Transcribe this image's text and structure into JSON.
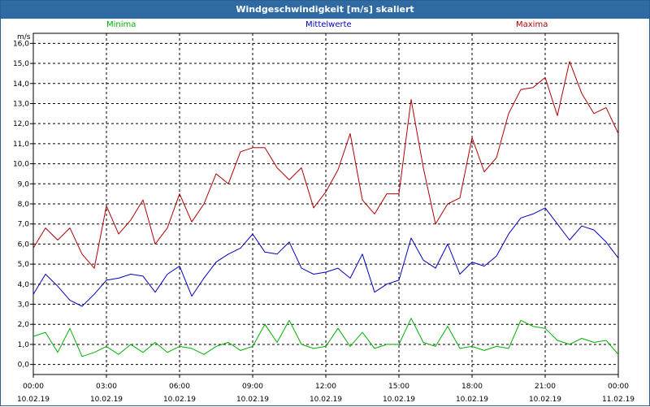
{
  "window": {
    "title": "Windgeschwindigkeit [m/s] skaliert"
  },
  "chart_data": {
    "type": "line",
    "title": "Windgeschwindigkeit [m/s] skaliert",
    "ylabel": "m/s",
    "ylim": [
      -0.5,
      16.5
    ],
    "y_ticks": [
      "0,0",
      "1,0",
      "2,0",
      "3,0",
      "4,0",
      "5,0",
      "6,0",
      "7,0",
      "8,0",
      "9,0",
      "10,0",
      "11,0",
      "12,0",
      "13,0",
      "14,0",
      "15,0",
      "16,0"
    ],
    "x_ticks": [
      {
        "time": "00:00",
        "date": "10.02.19"
      },
      {
        "time": "03:00",
        "date": "10.02.19"
      },
      {
        "time": "06:00",
        "date": "10.02.19"
      },
      {
        "time": "09:00",
        "date": "10.02.19"
      },
      {
        "time": "12:00",
        "date": "10.02.19"
      },
      {
        "time": "15:00",
        "date": "10.02.19"
      },
      {
        "time": "18:00",
        "date": "10.02.19"
      },
      {
        "time": "21:00",
        "date": "10.02.19"
      },
      {
        "time": "00:00",
        "date": "11.02.19"
      }
    ],
    "x_hours": [
      0,
      0.5,
      1,
      1.5,
      2,
      2.5,
      3,
      3.5,
      4,
      4.5,
      5,
      5.5,
      6,
      6.5,
      7,
      7.5,
      8,
      8.5,
      9,
      9.5,
      10,
      10.5,
      11,
      11.5,
      12,
      12.5,
      13,
      13.5,
      14,
      14.5,
      15,
      15.5,
      16,
      16.5,
      17,
      17.5,
      18,
      18.5,
      19,
      19.5,
      20,
      20.5,
      21,
      21.5,
      22,
      22.5,
      23,
      23.5,
      24
    ],
    "grid": true,
    "legend": "top",
    "series": [
      {
        "name": "Minima",
        "color": "#00b000",
        "values": [
          1.4,
          1.6,
          0.6,
          1.8,
          0.4,
          0.6,
          0.9,
          0.5,
          1.0,
          0.6,
          1.1,
          0.6,
          0.9,
          0.8,
          0.5,
          0.9,
          1.1,
          0.7,
          0.9,
          2.0,
          1.1,
          2.2,
          1.0,
          0.8,
          0.9,
          1.8,
          0.9,
          1.6,
          0.8,
          1.0,
          1.0,
          2.3,
          1.1,
          0.9,
          1.9,
          0.8,
          0.9,
          0.7,
          0.9,
          0.8,
          2.2,
          1.9,
          1.8,
          1.2,
          1.0,
          1.3,
          1.1,
          1.2,
          0.5
        ]
      },
      {
        "name": "Mittelwerte",
        "color": "#0000c0",
        "values": [
          3.5,
          4.5,
          3.9,
          3.2,
          2.9,
          3.5,
          4.2,
          4.3,
          4.5,
          4.4,
          3.6,
          4.5,
          4.9,
          3.4,
          4.3,
          5.1,
          5.5,
          5.8,
          6.5,
          5.6,
          5.5,
          6.1,
          4.8,
          4.5,
          4.6,
          4.8,
          4.3,
          5.5,
          3.6,
          4.0,
          4.2,
          6.3,
          5.2,
          4.8,
          6.0,
          4.5,
          5.1,
          4.9,
          5.4,
          6.5,
          7.3,
          7.5,
          7.8,
          7.0,
          6.2,
          6.9,
          6.7,
          6.1,
          5.3
        ]
      },
      {
        "name": "Maxima",
        "color": "#b00000",
        "values": [
          5.8,
          6.8,
          6.2,
          6.8,
          5.5,
          4.8,
          7.9,
          6.5,
          7.2,
          8.2,
          6.0,
          6.8,
          8.5,
          7.1,
          8.0,
          9.5,
          9.0,
          10.6,
          10.8,
          10.8,
          9.8,
          9.2,
          9.8,
          7.8,
          8.6,
          9.7,
          11.5,
          8.2,
          7.5,
          8.5,
          8.5,
          13.2,
          9.8,
          7.0,
          8.0,
          8.3,
          11.3,
          9.6,
          10.3,
          12.5,
          13.7,
          13.8,
          14.3,
          12.4,
          15.1,
          13.5,
          12.5,
          12.8,
          11.5
        ]
      }
    ]
  }
}
